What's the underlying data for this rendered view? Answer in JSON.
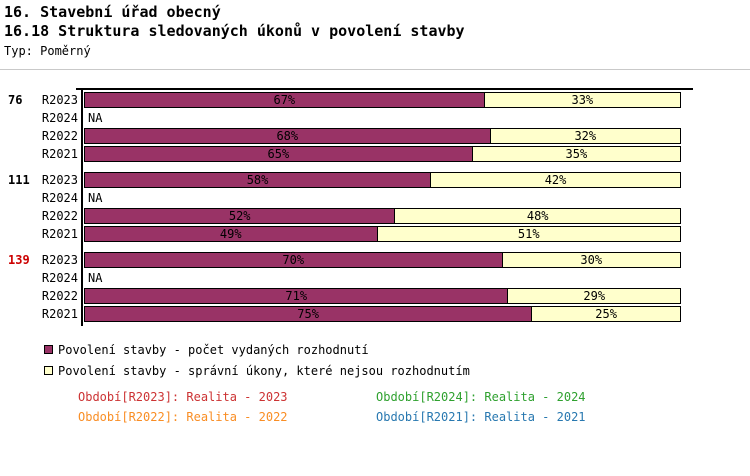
{
  "header": {
    "title_line1": "16. Stavební úřad obecný",
    "title_line2": "16.18 Struktura sledovaných úkonů v povolení stavby",
    "type_label": "Typ: Poměrný"
  },
  "chart_data": {
    "type": "bar",
    "orientation": "horizontal",
    "stacked": true,
    "value_unit": "%",
    "xlim": [
      0,
      100
    ],
    "na_label": "NA",
    "series": [
      {
        "name": "Povolení stavby - počet vydaných rozhodnutí",
        "color": "#993366"
      },
      {
        "name": "Povolení stavby - správní úkony, které nejsou rozhodnutím",
        "color": "#FFFFCC"
      }
    ],
    "groups": [
      {
        "label": "76",
        "label_color": "#000000",
        "rows": [
          {
            "period": "R2023",
            "values": [
              67,
              33
            ]
          },
          {
            "period": "R2024",
            "values": null
          },
          {
            "period": "R2022",
            "values": [
              68,
              32
            ]
          },
          {
            "period": "R2021",
            "values": [
              65,
              35
            ]
          }
        ]
      },
      {
        "label": "111",
        "label_color": "#000000",
        "rows": [
          {
            "period": "R2023",
            "values": [
              58,
              42
            ]
          },
          {
            "period": "R2024",
            "values": null
          },
          {
            "period": "R2022",
            "values": [
              52,
              48
            ]
          },
          {
            "period": "R2021",
            "values": [
              49,
              51
            ]
          }
        ]
      },
      {
        "label": "139",
        "label_color": "#CC0000",
        "rows": [
          {
            "period": "R2023",
            "values": [
              70,
              30
            ]
          },
          {
            "period": "R2024",
            "values": null
          },
          {
            "period": "R2022",
            "values": [
              71,
              29
            ]
          },
          {
            "period": "R2021",
            "values": [
              75,
              25
            ]
          }
        ]
      }
    ]
  },
  "legend": {
    "items": [
      {
        "label": "Povolení stavby - počet vydaných rozhodnutí",
        "color": "#993366"
      },
      {
        "label": "Povolení stavby - správní úkony, které nejsou rozhodnutím",
        "color": "#FFFFCC"
      }
    ]
  },
  "footnotes": [
    {
      "text": "Období[R2023]: Realita - 2023",
      "color": "#CC3333"
    },
    {
      "text": "Období[R2024]: Realita - 2024",
      "color": "#2FA12F"
    },
    {
      "text": "Období[R2022]: Realita - 2022",
      "color": "#F98E25"
    },
    {
      "text": "Období[R2021]: Realita - 2021",
      "color": "#2878B0"
    }
  ]
}
